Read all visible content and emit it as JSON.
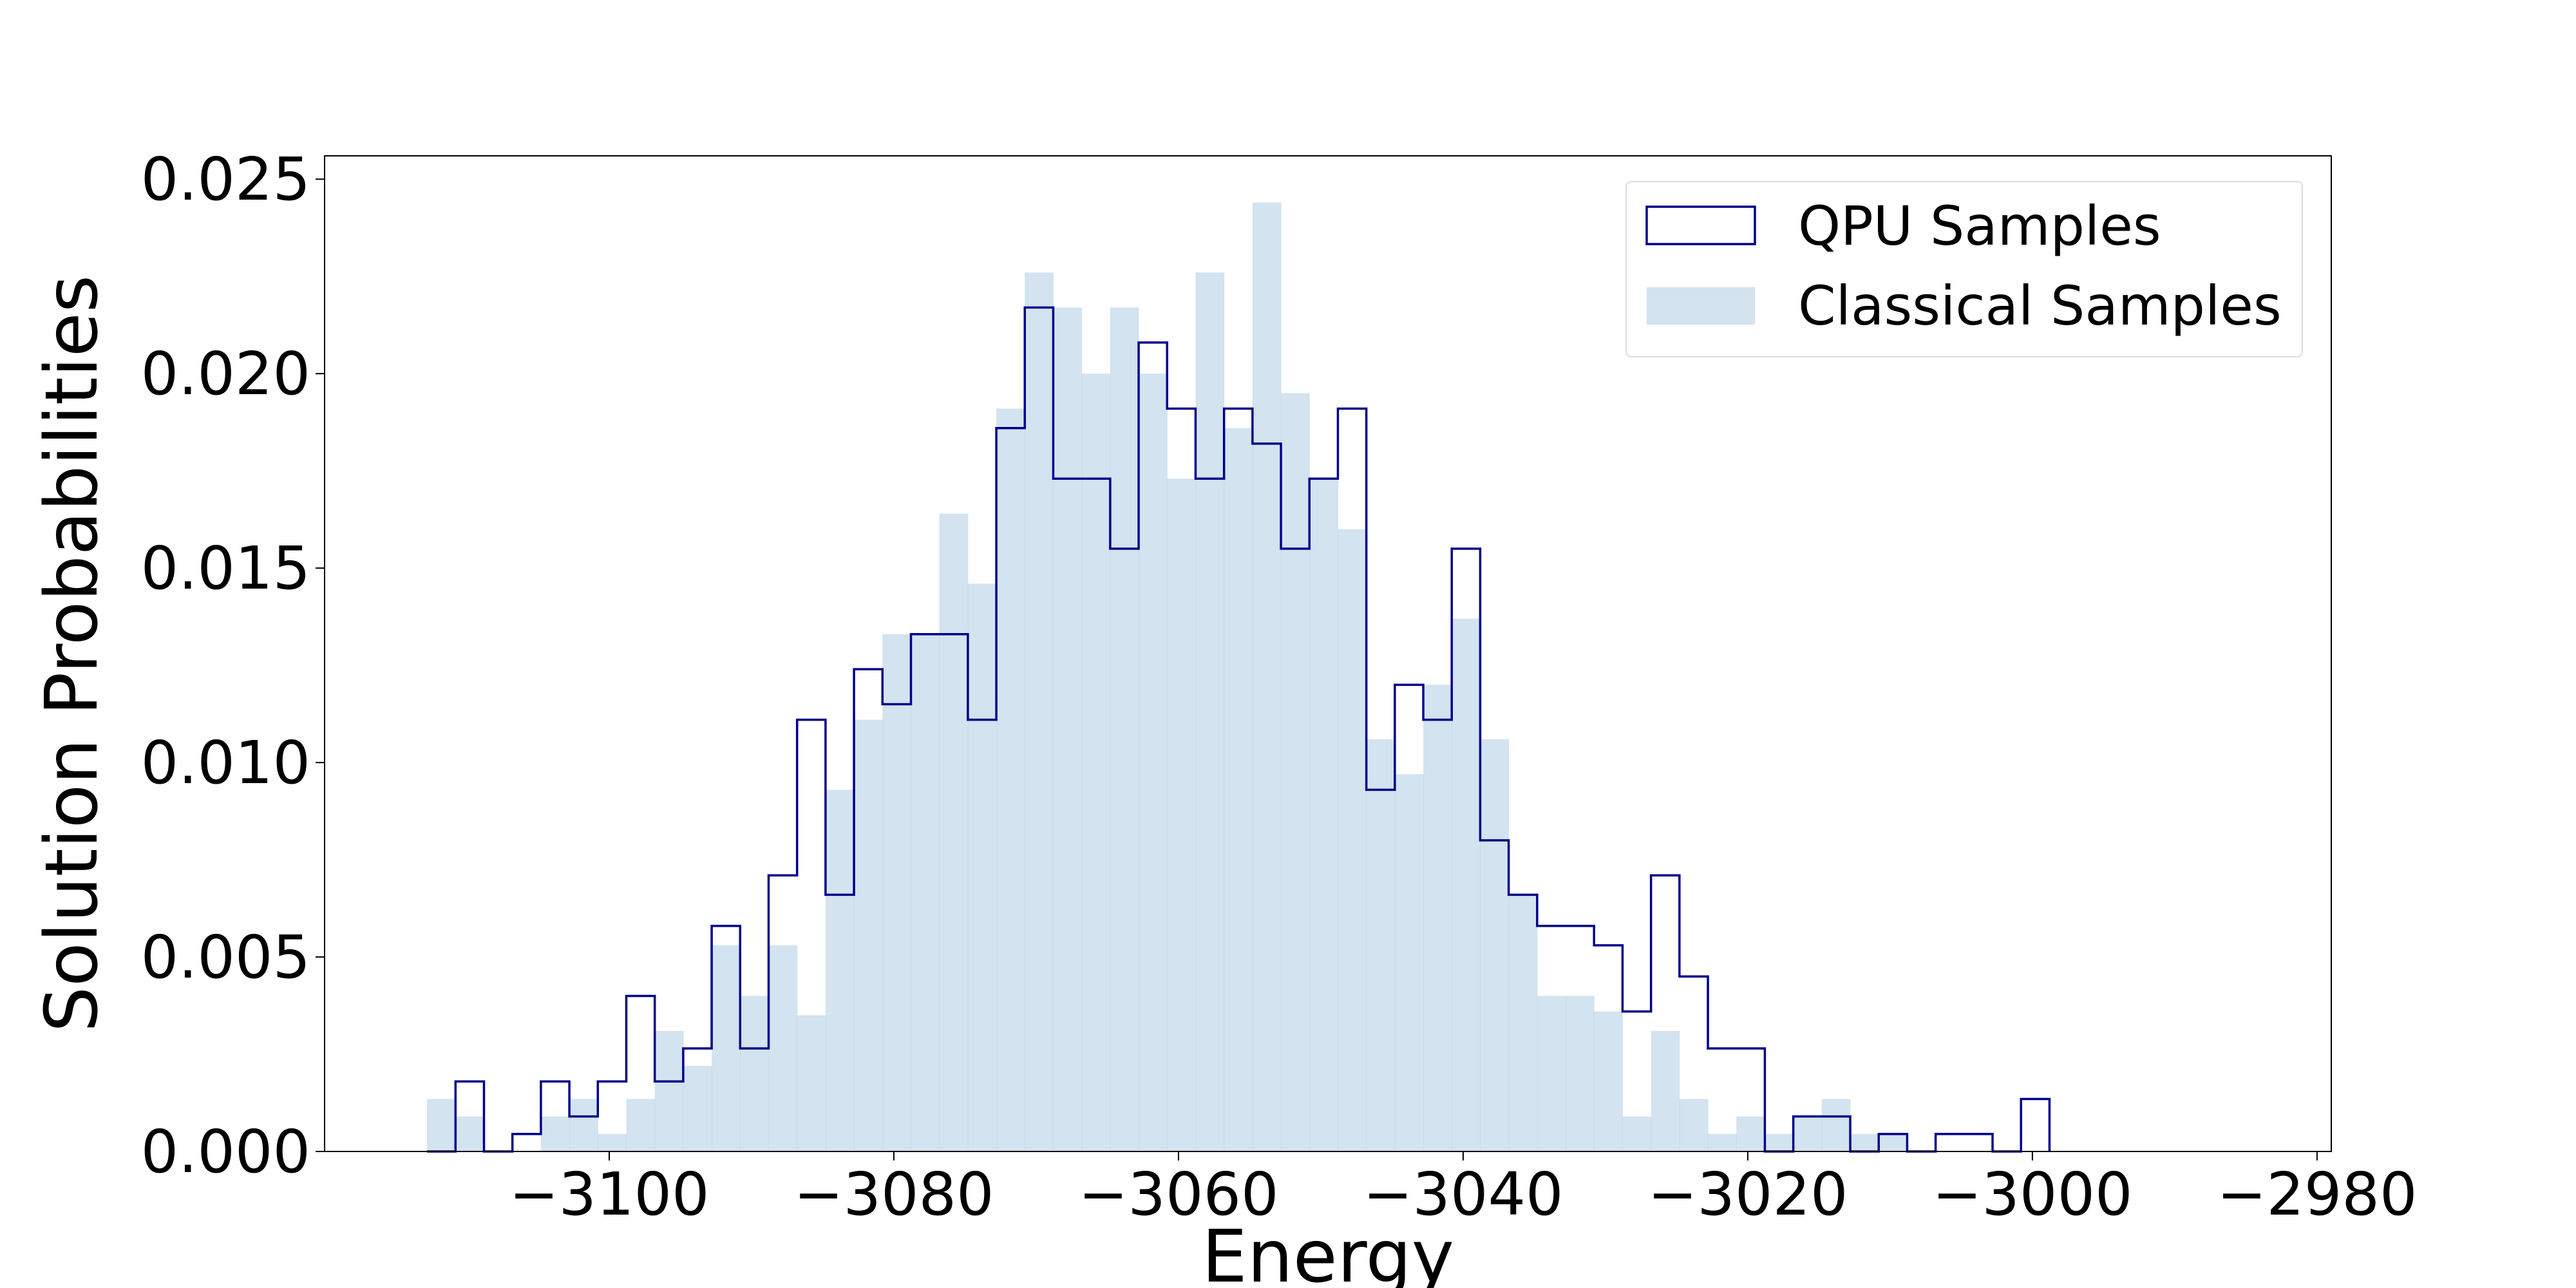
{
  "chart_data": {
    "type": "histogram",
    "xlabel": "Energy",
    "ylabel": "Solution Probabilities",
    "xlim": [
      -3120,
      -2979
    ],
    "ylim": [
      0,
      0.0256
    ],
    "xticks": [
      -3100,
      -3080,
      -3060,
      -3040,
      -3020,
      -3000,
      -2980
    ],
    "xtick_labels": [
      "−3100",
      "−3080",
      "−3060",
      "−3040",
      "−3020",
      "−3000",
      "−2980"
    ],
    "yticks": [
      0.0,
      0.005,
      0.01,
      0.015,
      0.02,
      0.025
    ],
    "ytick_labels": [
      "0.000",
      "0.005",
      "0.010",
      "0.015",
      "0.020",
      "0.025"
    ],
    "bin_start": -3112.8,
    "bin_width": 2.0,
    "grid": false,
    "legend_position": "upper right",
    "series": [
      {
        "name": "QPU Samples",
        "style": "step",
        "color": "#00008b",
        "values": [
          0.0,
          0.0018,
          0.0,
          0.00045,
          0.0018,
          0.0009,
          0.0018,
          0.004,
          0.0018,
          0.00265,
          0.0058,
          0.00265,
          0.0071,
          0.0111,
          0.0066,
          0.0124,
          0.0115,
          0.0133,
          0.0133,
          0.0111,
          0.0186,
          0.0217,
          0.0173,
          0.0173,
          0.0155,
          0.0208,
          0.0191,
          0.0173,
          0.0191,
          0.0182,
          0.0155,
          0.0173,
          0.0191,
          0.0093,
          0.012,
          0.0111,
          0.0155,
          0.008,
          0.0066,
          0.0058,
          0.0058,
          0.0053,
          0.0036,
          0.0071,
          0.0045,
          0.00265,
          0.00265,
          0.0,
          0.0009,
          0.0009,
          0.0,
          0.00045,
          0.0,
          0.00045,
          0.00045,
          0.0,
          0.00135
        ]
      },
      {
        "name": "Classical Samples",
        "style": "filled",
        "color": "#a8c8e0",
        "values": [
          0.00135,
          0.0009,
          0.0,
          0.0,
          0.0009,
          0.00135,
          0.00045,
          0.00135,
          0.0031,
          0.0022,
          0.0053,
          0.004,
          0.0053,
          0.0035,
          0.0093,
          0.0111,
          0.0133,
          0.0133,
          0.0164,
          0.0146,
          0.0191,
          0.0226,
          0.0217,
          0.02,
          0.0217,
          0.02,
          0.0173,
          0.0226,
          0.0186,
          0.0244,
          0.0195,
          0.0173,
          0.016,
          0.0106,
          0.0097,
          0.012,
          0.0137,
          0.0106,
          0.0066,
          0.004,
          0.004,
          0.0036,
          0.0009,
          0.0031,
          0.00135,
          0.00045,
          0.0009,
          0.00045,
          0.0009,
          0.00135,
          0.00045,
          0.00045,
          0.0,
          0.0,
          0.0,
          0.0,
          0.0
        ]
      }
    ]
  }
}
